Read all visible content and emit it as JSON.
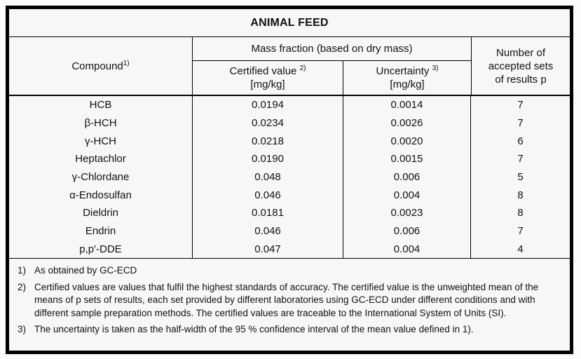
{
  "title": "ANIMAL FEED",
  "colors": {
    "border": "#000000",
    "table_background": "#f7f7f7",
    "text": "#111111"
  },
  "table": {
    "compound_header": "Compound",
    "compound_header_sup": "1)",
    "mass_fraction_header": "Mass fraction (based on dry mass)",
    "certified_header": "Certified value",
    "certified_sup": "2)",
    "certified_unit": "[mg/kg]",
    "uncertainty_header": "Uncertainty",
    "uncertainty_sup": "3)",
    "uncertainty_unit": "[mg/kg]",
    "results_header": "Number of accepted sets of results p",
    "rows": [
      {
        "compound": "HCB",
        "certified": "0.0194",
        "uncertainty": "0.0014",
        "p": "7"
      },
      {
        "compound": "β-HCH",
        "certified": "0.0234",
        "uncertainty": "0.0026",
        "p": "7"
      },
      {
        "compound": "γ-HCH",
        "certified": "0.0218",
        "uncertainty": "0.0020",
        "p": "6"
      },
      {
        "compound": "Heptachlor",
        "certified": "0.0190",
        "uncertainty": "0.0015",
        "p": "7"
      },
      {
        "compound": "γ-Chlordane",
        "certified": "0.048",
        "uncertainty": "0.006",
        "p": "5"
      },
      {
        "compound": "α-Endosulfan",
        "certified": "0.046",
        "uncertainty": "0.004",
        "p": "8"
      },
      {
        "compound": "Dieldrin",
        "certified": "0.0181",
        "uncertainty": "0.0023",
        "p": "8"
      },
      {
        "compound": "Endrin",
        "certified": "0.046",
        "uncertainty": "0.006",
        "p": "7"
      },
      {
        "compound": "p,p'-DDE",
        "certified": "0.047",
        "uncertainty": "0.004",
        "p": "4"
      }
    ]
  },
  "footnotes": [
    {
      "marker": "1)",
      "text": "As obtained by GC-ECD"
    },
    {
      "marker": "2)",
      "text": "Certified values are values that fulfil the highest standards of accuracy. The certified value is the unweighted mean of the means of p sets of results, each set provided by different laboratories using GC-ECD under different conditions and with different sample preparation methods. The certified values are traceable to the International System of Units (SI)."
    },
    {
      "marker": "3)",
      "text": "The uncertainty is taken as the half-width of the 95 % confidence interval of the mean value defined in 1)."
    }
  ]
}
